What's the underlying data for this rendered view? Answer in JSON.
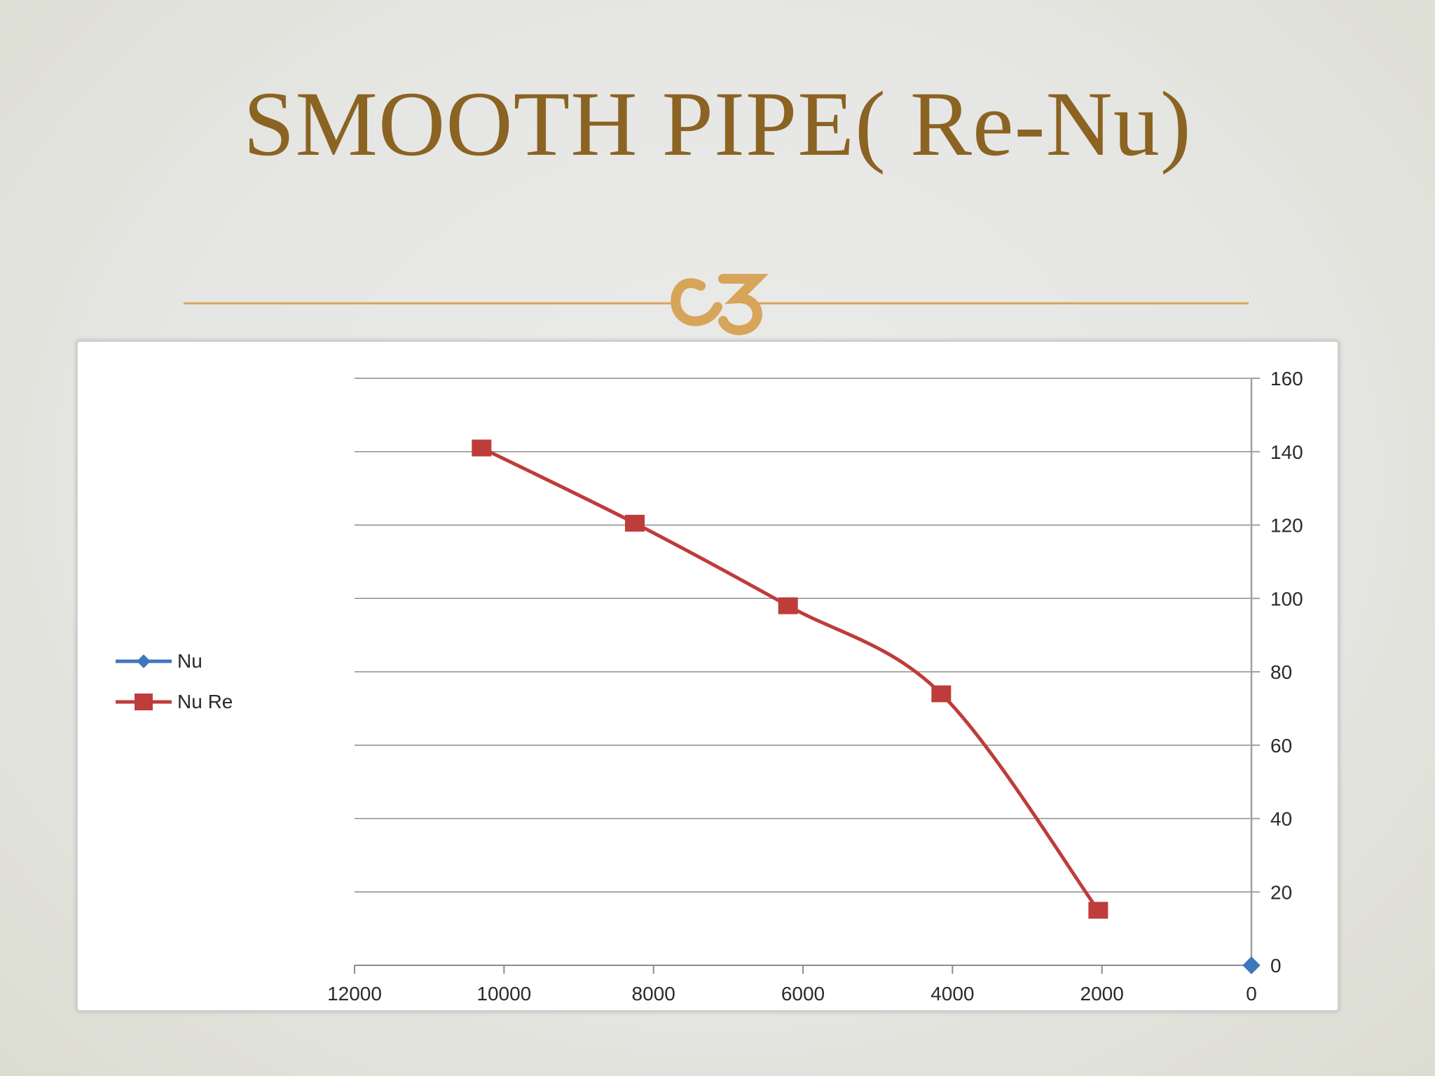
{
  "slide": {
    "title": "SMOOTH PIPE( Re-Nu)",
    "divider_glyph": "ornament-swirl-icon",
    "accent_color": "#8b6322",
    "divider_color": "#d7a55a"
  },
  "chart_data": {
    "type": "line",
    "title": "",
    "xlabel": "",
    "ylabel": "",
    "x_reversed": true,
    "xlim": [
      0,
      12000
    ],
    "ylim": [
      0,
      160
    ],
    "x_ticks": [
      12000,
      10000,
      8000,
      6000,
      4000,
      2000,
      0
    ],
    "y_ticks": [
      160,
      140,
      120,
      100,
      80,
      60,
      40,
      20,
      0
    ],
    "grid": true,
    "legend_position": "left",
    "series": [
      {
        "name": "Nu",
        "color": "#3f77bd",
        "marker": "diamond",
        "x": [
          0
        ],
        "y": [
          0
        ]
      },
      {
        "name": "Nu Re",
        "color": "#be3c3a",
        "marker": "square",
        "x": [
          10300,
          8250,
          6200,
          4150,
          2050
        ],
        "y": [
          141,
          120.5,
          98,
          74,
          15
        ]
      }
    ]
  }
}
